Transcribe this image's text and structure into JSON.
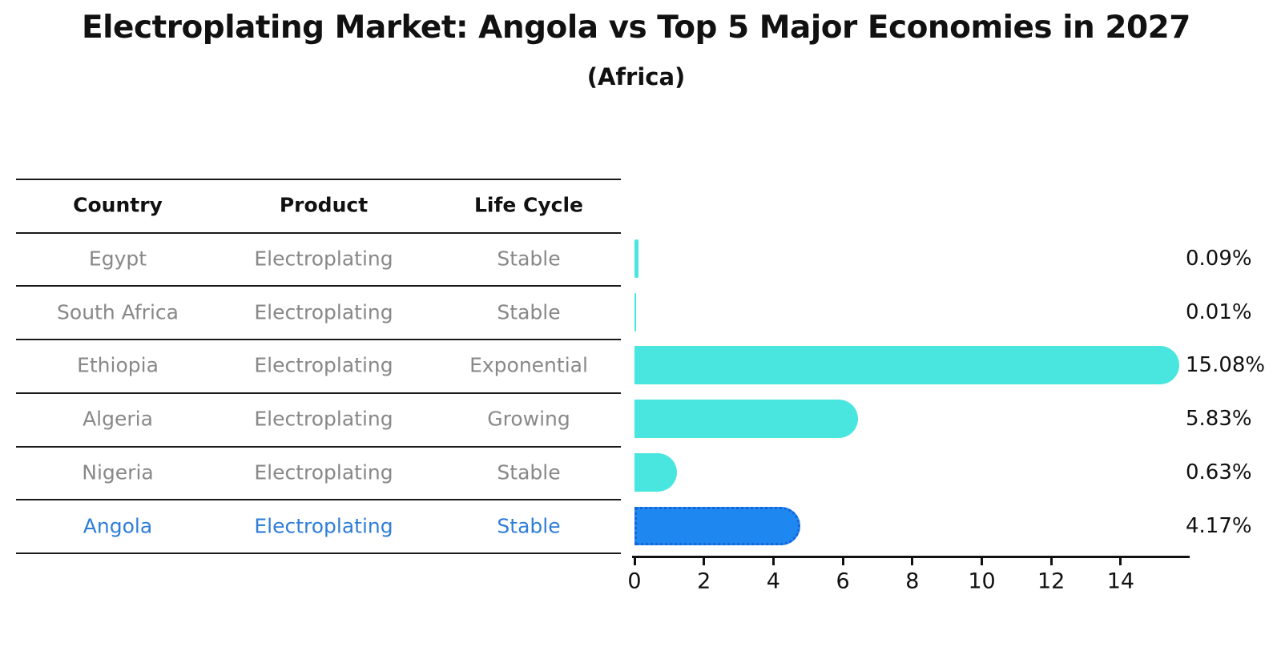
{
  "title": "Electroplating Market: Angola vs Top 5 Major Economies in 2027",
  "subtitle": "(Africa)",
  "table": {
    "headers": [
      "Country",
      "Product",
      "Life Cycle"
    ],
    "rows": [
      {
        "country": "Egypt",
        "product": "Electroplating",
        "life_cycle": "Stable",
        "value": 0.09,
        "value_label": "0.09%",
        "highlighted": false
      },
      {
        "country": "South Africa",
        "product": "Electroplating",
        "life_cycle": "Stable",
        "value": 0.01,
        "value_label": "0.01%",
        "highlighted": false
      },
      {
        "country": "Ethiopia",
        "product": "Electroplating",
        "life_cycle": "Exponential",
        "value": 15.08,
        "value_label": "15.08%",
        "highlighted": false
      },
      {
        "country": "Algeria",
        "product": "Electroplating",
        "life_cycle": "Growing",
        "value": 5.83,
        "value_label": "5.83%",
        "highlighted": false
      },
      {
        "country": "Nigeria",
        "product": "Electroplating",
        "life_cycle": "Stable",
        "value": 0.63,
        "value_label": "0.63%",
        "highlighted": false
      },
      {
        "country": "Angola",
        "product": "Electroplating",
        "life_cycle": "Stable",
        "value": 4.17,
        "value_label": "4.17%",
        "highlighted": true
      }
    ]
  },
  "chart_data": {
    "type": "bar",
    "orientation": "horizontal",
    "title": "Electroplating Market: Angola vs Top 5 Major Economies in 2027",
    "subtitle": "(Africa)",
    "categories": [
      "Egypt",
      "South Africa",
      "Ethiopia",
      "Algeria",
      "Nigeria",
      "Angola"
    ],
    "values": [
      0.09,
      0.01,
      15.08,
      5.83,
      0.63,
      4.17
    ],
    "value_labels": [
      "0.09%",
      "0.01%",
      "15.08%",
      "5.83%",
      "0.63%",
      "4.17%"
    ],
    "xlabel": "",
    "ylabel": "",
    "xticks": [
      0,
      2,
      4,
      6,
      8,
      10,
      12,
      14
    ],
    "xlim": [
      0,
      16
    ],
    "grid": false,
    "legend": false,
    "highlight_category": "Angola"
  },
  "colors": {
    "bar_default": "#49E6E0",
    "bar_highlight": "#1E87F0",
    "bar_highlight_border": "#1565D8",
    "highlight_text": "#2F7ED8",
    "row_text": "#888888",
    "header_text": "#111111",
    "axis": "#111111"
  }
}
